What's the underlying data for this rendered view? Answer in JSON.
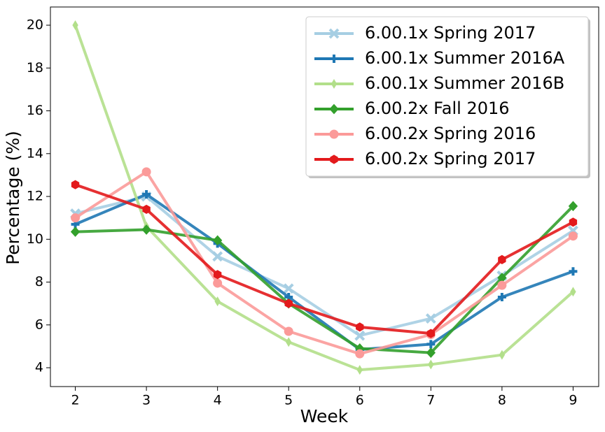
{
  "chart_data": {
    "type": "line",
    "x_label": "Week",
    "y_label": "Percentage (%)",
    "x": [
      2,
      3,
      4,
      5,
      6,
      7,
      8,
      9
    ],
    "xlim": [
      1.65,
      9.36
    ],
    "xticks": [
      2,
      3,
      4,
      5,
      6,
      7,
      8,
      9
    ],
    "ylim": [
      3.12,
      20.85
    ],
    "yticks": [
      4,
      6,
      8,
      10,
      12,
      14,
      16,
      18,
      20
    ],
    "legend": "upper right",
    "series": [
      {
        "name": "6.00.1x Spring 2017",
        "color": "#a6cee3",
        "marker": "x",
        "values": [
          11.2,
          12.0,
          9.2,
          7.7,
          5.5,
          6.3,
          8.3,
          10.4
        ]
      },
      {
        "name": "6.00.1x Summer 2016A",
        "color": "#1f78b4",
        "marker": "plus",
        "values": [
          10.7,
          12.1,
          9.8,
          7.3,
          4.85,
          5.1,
          7.3,
          8.5
        ]
      },
      {
        "name": "6.00.1x Summer 2016B",
        "color": "#b2df8a",
        "marker": "thin-diamond",
        "values": [
          20.0,
          10.6,
          7.1,
          5.2,
          3.9,
          4.15,
          4.6,
          7.55
        ]
      },
      {
        "name": "6.00.2x Fall 2016",
        "color": "#33a02c",
        "marker": "diamond",
        "values": [
          10.35,
          10.45,
          9.95,
          7.0,
          4.9,
          4.7,
          8.2,
          11.55
        ]
      },
      {
        "name": "6.00.2x Spring 2016",
        "color": "#fb9a99",
        "marker": "circle",
        "values": [
          11.0,
          13.15,
          7.95,
          5.7,
          4.65,
          5.55,
          7.85,
          10.15
        ]
      },
      {
        "name": "6.00.2x Spring 2017",
        "color": "#e31a1c",
        "marker": "hexagon",
        "values": [
          12.55,
          11.4,
          8.35,
          7.0,
          5.9,
          5.6,
          9.05,
          10.8
        ]
      }
    ]
  }
}
